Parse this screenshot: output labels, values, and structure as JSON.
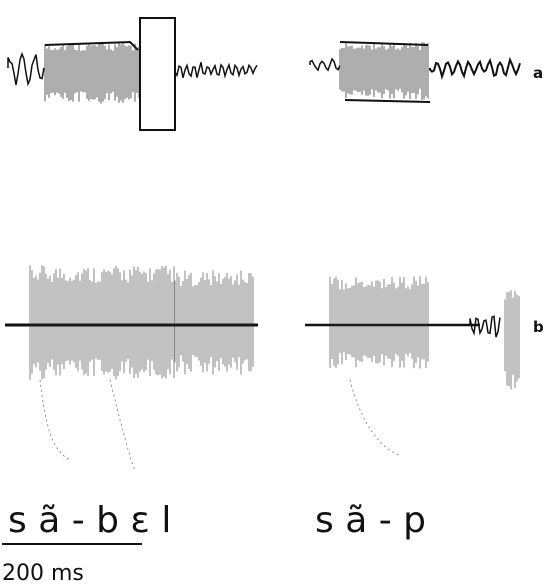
{
  "trace_labels": [
    "a",
    "b"
  ],
  "transcriptions": [
    "s ã - b ɛ l",
    "s ã - p"
  ],
  "scale_bar": "200 ms"
}
